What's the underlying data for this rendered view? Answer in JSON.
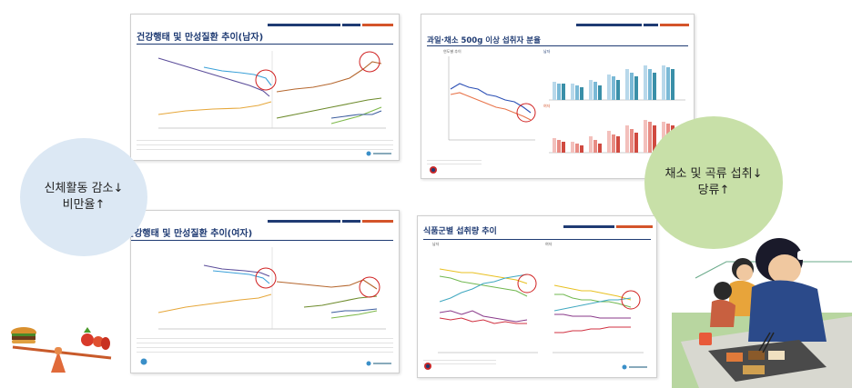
{
  "slide_male": {
    "title": "건강행태 및 만성질환 추이(남자)"
  },
  "slide_female": {
    "title": "건강행태 및 만성질환 추이(여자)"
  },
  "slide_fruit": {
    "title": "과일·채소 500g 이상 섭취자 분율",
    "sub_left": "연도별 추이",
    "sub_right_top": "남자",
    "sub_right_bottom": "여자",
    "x_ticks": [
      "'13",
      "'14",
      "'15",
      "'16",
      "'17",
      "'18",
      "'19",
      "'20",
      "'21",
      "'22"
    ]
  },
  "slide_food": {
    "title": "식품군별 섭취량 추이",
    "left_label": "남자",
    "right_label": "여자",
    "x_ticks": [
      "'13",
      "'14",
      "'15",
      "'16",
      "'17",
      "'18",
      "'19",
      "'20",
      "'21",
      "'22"
    ]
  },
  "bubble_left": {
    "line1": "신체활동 감소↓",
    "line2": "비만율↑"
  },
  "bubble_right": {
    "line1": "채소 및 곡류 섭취↓",
    "line2": "당류↑"
  },
  "colors": {
    "navy": "#1f3b73",
    "accent": "#d4542a",
    "bubble_left": "#dce8f4",
    "bubble_right": "#c8e0a8",
    "highlight": "#d02020"
  },
  "icons": [
    "seesaw-burger-vegetables-icon",
    "students-eating-lunch-illustration"
  ]
}
